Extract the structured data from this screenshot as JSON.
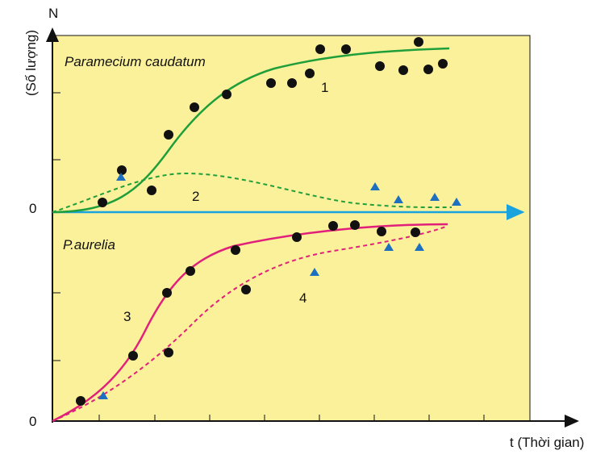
{
  "axes": {
    "y_label": "N",
    "y_sublabel": "(Số lượng)",
    "x_label": "t (Thời gian)",
    "origin_upper": "0",
    "origin_lower": "0"
  },
  "species": {
    "upper": "Paramecium caudatum",
    "lower": "P.aurelia"
  },
  "curves": {
    "c1": "1",
    "c2": "2",
    "c3": "3",
    "c4": "4"
  }
}
